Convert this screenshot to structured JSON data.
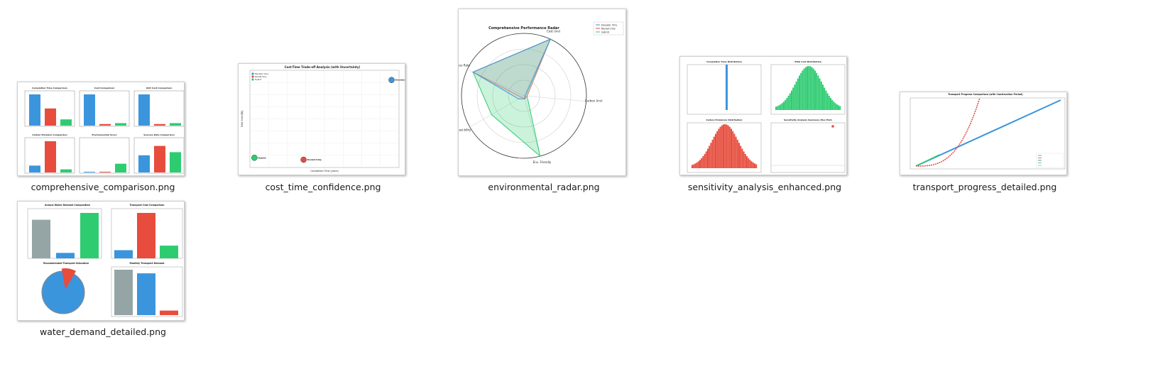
{
  "files": [
    {
      "name": "comprehensive_comparison.png",
      "panels": [
        {
          "title": "Completion Time Comparison",
          "values": [
            1.0,
            0.55,
            0.2
          ],
          "colors": [
            "#3b95dd",
            "#e74c3c",
            "#2ecc71"
          ]
        },
        {
          "title": "Cost Comparison",
          "values": [
            1.0,
            0.05,
            0.08
          ],
          "colors": [
            "#3b95dd",
            "#e74c3c",
            "#2ecc71"
          ]
        },
        {
          "title": "Unit Cost Comparison",
          "values": [
            1.0,
            0.05,
            0.08
          ],
          "colors": [
            "#3b95dd",
            "#e74c3c",
            "#2ecc71"
          ]
        },
        {
          "title": "Carbon Emission Comparison",
          "values": [
            0.22,
            1.0,
            0.1
          ],
          "colors": [
            "#3b95dd",
            "#e74c3c",
            "#2ecc71"
          ]
        },
        {
          "title": "Environmental Score",
          "values": [
            0.02,
            0.01,
            0.28
          ],
          "colors": [
            "#3b95dd",
            "#e74c3c",
            "#2ecc71"
          ]
        },
        {
          "title": "Success Rate Comparison",
          "values": [
            0.55,
            0.85,
            0.65
          ],
          "colors": [
            "#3b95dd",
            "#e74c3c",
            "#2ecc71"
          ]
        }
      ]
    },
    {
      "name": "cost_time_confidence.png",
      "title": "Cost-Time Trade-off Analysis (with Uncertainty)",
      "legend": [
        "Elevator Only",
        "Rocket Only",
        "Hybrid"
      ],
      "xlabel": "Completion Time (years)",
      "ylabel": "Total Cost (B$)",
      "points": [
        {
          "label": "Elevator Only",
          "color": "#3b95dd",
          "x": 0.95,
          "y": 0.9
        },
        {
          "label": "Rocket Only",
          "color": "#e74c3c",
          "x": 0.36,
          "y": 0.08
        },
        {
          "label": "Hybrid",
          "color": "#2ecc71",
          "x": 0.03,
          "y": 0.1
        }
      ]
    },
    {
      "name": "environmental_radar.png",
      "title": "Comprehensive Performance Radar",
      "legend": [
        "Elevator Only",
        "Rocket Only",
        "Hybrid"
      ],
      "axes": [
        "Cost (inv)",
        "Carbon (inv)",
        "Env. Friendly",
        "Feasi-bility",
        "Success Rate"
      ]
    },
    {
      "name": "sensitivity_analysis_enhanced.png",
      "panels": [
        "Completion Time Distribution",
        "Total Cost Distribution",
        "Carbon Emissions Distribution",
        "Sensitivity Analysis Summary (Box Plot)"
      ]
    },
    {
      "name": "transport_progress_detailed.png",
      "title": "Transport Progress Comparison (with Construction Period)"
    },
    {
      "name": "water_demand_detailed.png",
      "panels": [
        {
          "title": "Annual Water Demand Composition"
        },
        {
          "title": "Transport Cost Comparison"
        },
        {
          "title": "Recommended Transport Allocation"
        },
        {
          "title": "Monthly Transport Demand"
        }
      ]
    }
  ],
  "colors": {
    "blue": "#3b95dd",
    "red": "#e74c3c",
    "green": "#2ecc71",
    "gray": "#95a5a6"
  }
}
